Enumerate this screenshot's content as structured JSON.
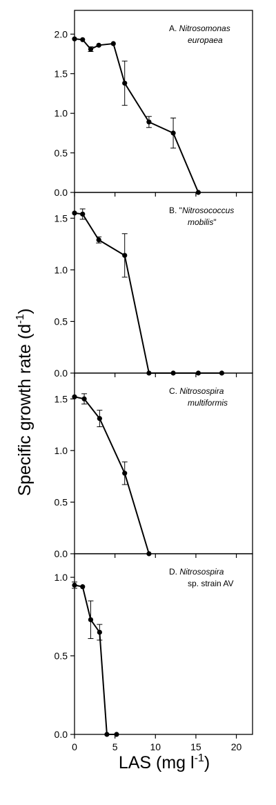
{
  "figure": {
    "ylabel_main": "Specific growth rate (d",
    "ylabel_sup": "-1",
    "ylabel_end": ")",
    "xlabel_main": "LAS (mg l",
    "xlabel_sup": "-1",
    "xlabel_end": ")"
  },
  "chart_data": [
    {
      "type": "line",
      "panel": "A",
      "title_prefix": "A.",
      "title_line1": "Nitrosomonas",
      "title_line2": "europaea",
      "title_quoted": false,
      "xlim": [
        0,
        22
      ],
      "ylim": [
        0,
        2.3
      ],
      "yticks": [
        "0.0",
        "0.5",
        "1.0",
        "1.5",
        "2.0"
      ],
      "ytick_values": [
        0,
        0.5,
        1.0,
        1.5,
        2.0
      ],
      "x": [
        0,
        1,
        2,
        3,
        4.8,
        6.2,
        9.2,
        12.2,
        15.3
      ],
      "y": [
        1.94,
        1.93,
        1.81,
        1.86,
        1.88,
        1.38,
        0.89,
        0.75,
        0.0
      ],
      "err": [
        0,
        0,
        0.03,
        0,
        0,
        0.28,
        0.07,
        0.19,
        0
      ]
    },
    {
      "type": "line",
      "panel": "B",
      "title_prefix": "B.",
      "title_line1": "Nitrosococcus",
      "title_line2": "mobilis",
      "title_quoted": true,
      "xlim": [
        0,
        22
      ],
      "ylim": [
        0,
        1.75
      ],
      "yticks": [
        "0.0",
        "0.5",
        "1.0",
        "1.5"
      ],
      "ytick_values": [
        0,
        0.5,
        1.0,
        1.5
      ],
      "x": [
        0,
        1,
        3,
        6.2,
        9.2,
        12.2,
        15.3,
        18.2
      ],
      "y": [
        1.55,
        1.54,
        1.29,
        1.14,
        0.0,
        0.0,
        0.0,
        0.0
      ],
      "err": [
        0,
        0.05,
        0.03,
        0.21,
        0,
        0,
        0,
        0
      ]
    },
    {
      "type": "line",
      "panel": "C",
      "title_prefix": "C.",
      "title_line1": "Nitrosospira",
      "title_line2": "multiformis",
      "title_quoted": false,
      "xlim": [
        0,
        22
      ],
      "ylim": [
        0,
        1.75
      ],
      "yticks": [
        "0.0",
        "0.5",
        "1.0",
        "1.5"
      ],
      "ytick_values": [
        0,
        0.5,
        1.0,
        1.5
      ],
      "x": [
        0,
        1.2,
        3.1,
        6.2,
        9.2
      ],
      "y": [
        1.52,
        1.5,
        1.31,
        0.78,
        0.0
      ],
      "err": [
        0,
        0.05,
        0.08,
        0.11,
        0
      ]
    },
    {
      "type": "line",
      "panel": "D",
      "title_prefix": "D.",
      "title_line1": "Nitrosospira",
      "title_line2": "sp. strain AV",
      "title_quoted": false,
      "line2_italic": false,
      "xlim": [
        0,
        22
      ],
      "ylim": [
        0,
        1.15
      ],
      "yticks": [
        "0.0",
        "0.5",
        "1.0"
      ],
      "ytick_values": [
        0,
        0.5,
        1.0
      ],
      "x": [
        0,
        1,
        2,
        3.1,
        4,
        5.2
      ],
      "y": [
        0.95,
        0.94,
        0.73,
        0.65,
        0.0,
        0.0
      ],
      "err": [
        0.02,
        0,
        0.12,
        0.05,
        0,
        0
      ],
      "xticks": [
        "0",
        "5",
        "10",
        "15",
        "20"
      ],
      "xtick_values": [
        0,
        5,
        10,
        15,
        20
      ]
    }
  ]
}
